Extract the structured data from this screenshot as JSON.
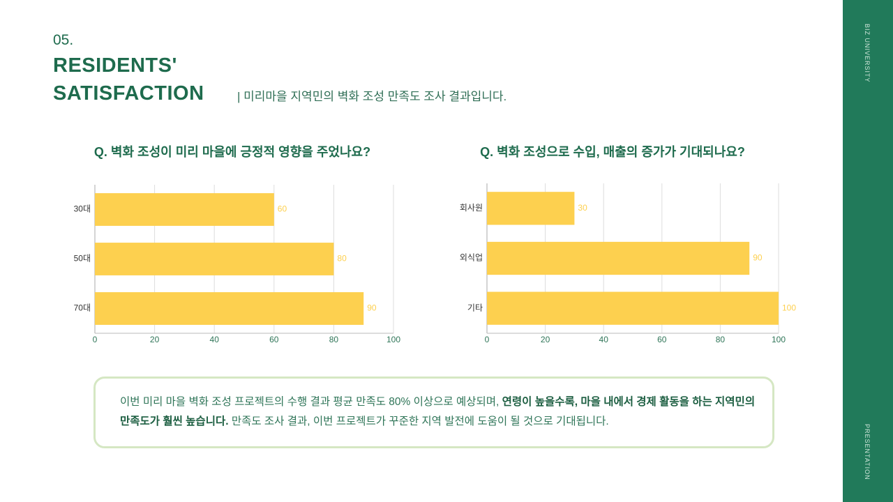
{
  "header": {
    "number": "05.",
    "title_line1": "RESIDENTS'",
    "title_line2": "SATISFACTION",
    "subtitle": "| 미리마을 지역민의 벽화 조성 만족도 조사 결과입니다."
  },
  "sidebar": {
    "top": "BIZ UNIVERSITY",
    "bottom": "PRESENTATION"
  },
  "chart_data": [
    {
      "type": "bar",
      "orientation": "horizontal",
      "title": "Q. 벽화 조성이 미리 마을에 긍정적 영향을 주었나요?",
      "categories": [
        "30대",
        "50대",
        "70대"
      ],
      "values": [
        60,
        80,
        90
      ],
      "color": "#fdd04f",
      "xlim": [
        0,
        100
      ],
      "xticks": [
        0,
        20,
        40,
        60,
        80,
        100
      ],
      "grid": true
    },
    {
      "type": "bar",
      "orientation": "horizontal",
      "title": "Q. 벽화 조성으로 수입, 매출의 증가가 기대되나요?",
      "categories": [
        "회사원",
        "외식업",
        "기타"
      ],
      "values": [
        30,
        90,
        100
      ],
      "color": "#fdd04f",
      "xlim": [
        0,
        100
      ],
      "xticks": [
        0,
        20,
        40,
        60,
        80,
        100
      ],
      "grid": true
    }
  ],
  "summary": {
    "segments": [
      {
        "text": "이번 미리 마을 벽화 조성 프로젝트의 수행 결과 평균 만족도 80% 이상으로 예상되며, ",
        "bold": false
      },
      {
        "text": "연령이 높을수록, 마을 내에서 경제 활동을 하는 지역민의 만족도가 훨씬 높습니다.",
        "bold": true
      },
      {
        "text": " 만족도 조사 결과, 이번 프로젝트가 꾸준한 지역 발전에 도움이 될 것으로 기대됩니다.",
        "bold": false
      }
    ]
  }
}
